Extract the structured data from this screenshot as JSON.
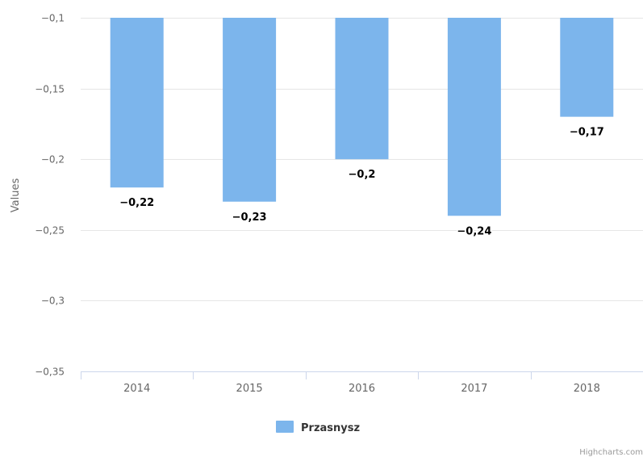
{
  "chart_data": {
    "type": "bar",
    "categories": [
      "2014",
      "2015",
      "2016",
      "2017",
      "2018"
    ],
    "series": [
      {
        "name": "Przasnysz",
        "values": [
          -0.22,
          -0.23,
          -0.2,
          -0.24,
          -0.17
        ],
        "data_labels": [
          "−0,22",
          "−0,23",
          "−0,2",
          "−0,24",
          "−0,17"
        ],
        "color": "#7cb5ec"
      }
    ],
    "ylabel": "Values",
    "ylim": [
      -0.35,
      -0.1
    ],
    "yticks": [
      -0.1,
      -0.15,
      -0.2,
      -0.25,
      -0.3,
      -0.35
    ],
    "ytick_labels": [
      "−0,1",
      "−0,15",
      "−0,2",
      "−0,25",
      "−0,3",
      "−0,35"
    ],
    "grid": true,
    "legend": "bottom-center",
    "credit": "Highcharts.com"
  }
}
